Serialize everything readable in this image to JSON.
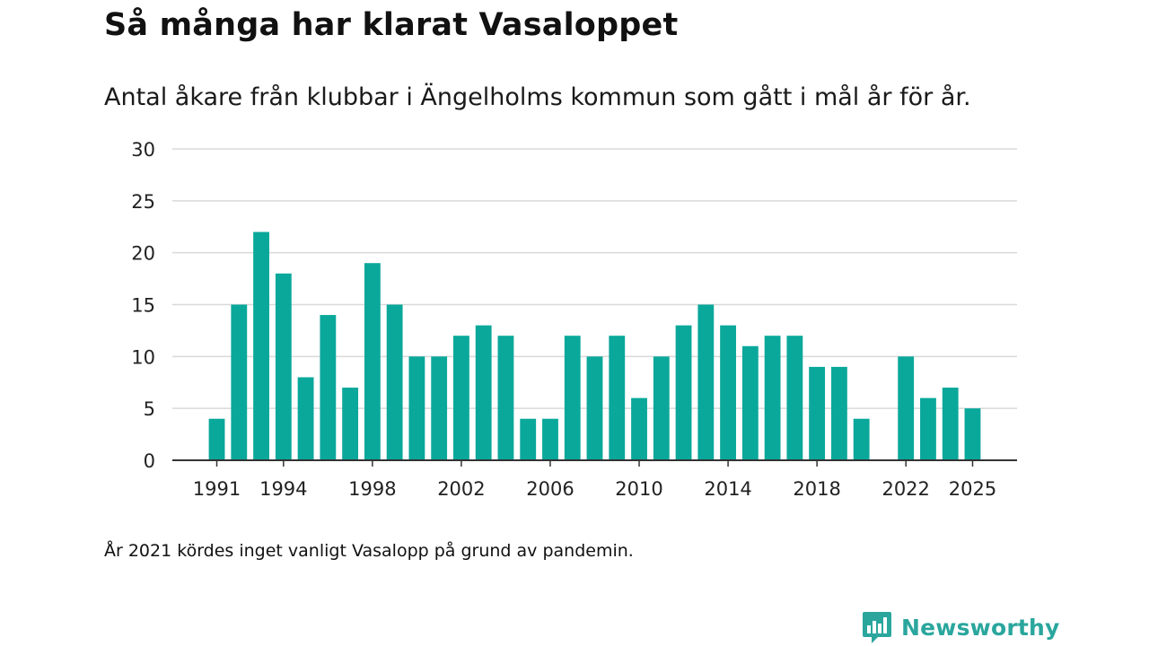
{
  "header": {
    "title": "Så många har klarat Vasaloppet",
    "subtitle": "Antal åkare från klubbar i Ängelholms kommun som gått i mål år för år."
  },
  "footer": {
    "note": "År 2021 kördes inget vanligt Vasalopp på grund av pandemin.",
    "brand": "Newsworthy"
  },
  "colors": {
    "bar": "#0aa89b",
    "grid": "#d9d9d9",
    "axis": "#333333",
    "brand": "#2aa69d"
  },
  "chart_data": {
    "type": "bar",
    "title": "Så många har klarat Vasaloppet",
    "xlabel": "",
    "ylabel": "",
    "ylim": [
      0,
      30
    ],
    "yticks": [
      0,
      5,
      10,
      15,
      20,
      25,
      30
    ],
    "xlim": [
      1989,
      2027
    ],
    "xticks": [
      1991,
      1994,
      1998,
      2002,
      2006,
      2010,
      2014,
      2018,
      2022,
      2025
    ],
    "grid": true,
    "categories": [
      1991,
      1992,
      1993,
      1994,
      1995,
      1996,
      1997,
      1998,
      1999,
      2000,
      2001,
      2002,
      2003,
      2004,
      2005,
      2006,
      2007,
      2008,
      2009,
      2010,
      2011,
      2012,
      2013,
      2014,
      2015,
      2016,
      2017,
      2018,
      2019,
      2020,
      2021,
      2022,
      2023,
      2024,
      2025
    ],
    "values": [
      4,
      15,
      22,
      18,
      8,
      14,
      7,
      19,
      15,
      10,
      10,
      12,
      13,
      12,
      4,
      4,
      12,
      10,
      12,
      6,
      10,
      13,
      15,
      13,
      11,
      12,
      12,
      9,
      9,
      4,
      null,
      10,
      6,
      7,
      5
    ]
  }
}
